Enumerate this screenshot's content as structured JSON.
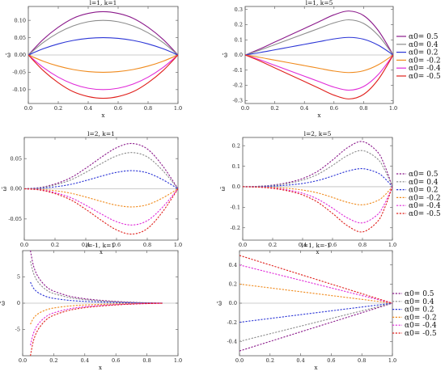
{
  "chart_data": [
    {
      "type": "line",
      "title": "l=1, k=1",
      "xlabel": "x",
      "ylabel": "ω̃",
      "xlim": [
        0,
        1
      ],
      "ylim": [
        -0.14,
        0.14
      ],
      "xticks": [
        "0.0",
        "0.2",
        "0.4",
        "0.6",
        "0.8",
        "1.0"
      ],
      "yticks": [
        "0.10",
        "0.05",
        "0.00",
        "-0.05",
        "-0.10"
      ],
      "zero_line": true,
      "x": [
        0,
        0.1,
        0.2,
        0.3,
        0.4,
        0.5,
        0.6,
        0.7,
        0.8,
        0.9,
        1
      ],
      "series": [
        {
          "name": "α0= 0.5",
          "color": "#8b1a8b",
          "values": [
            0,
            0.045,
            0.08,
            0.106,
            0.12,
            0.125,
            0.12,
            0.106,
            0.08,
            0.045,
            0
          ]
        },
        {
          "name": "α0= 0.4",
          "color": "#8c8c8c",
          "values": [
            0,
            0.036,
            0.064,
            0.084,
            0.096,
            0.1,
            0.096,
            0.084,
            0.064,
            0.036,
            0
          ]
        },
        {
          "name": "α0= 0.2",
          "color": "#2b35d6",
          "values": [
            0,
            0.018,
            0.032,
            0.042,
            0.048,
            0.05,
            0.048,
            0.042,
            0.032,
            0.018,
            0
          ]
        },
        {
          "name": "α0= -0.2",
          "color": "#f08a1c",
          "values": [
            0,
            -0.018,
            -0.032,
            -0.042,
            -0.048,
            -0.05,
            -0.048,
            -0.042,
            -0.032,
            -0.018,
            0
          ]
        },
        {
          "name": "α0= -0.4",
          "color": "#e02ad8",
          "values": [
            0,
            -0.036,
            -0.064,
            -0.084,
            -0.096,
            -0.1,
            -0.096,
            -0.084,
            -0.064,
            -0.036,
            0
          ]
        },
        {
          "name": "α0= -0.5",
          "color": "#e0201c",
          "values": [
            0,
            -0.045,
            -0.08,
            -0.106,
            -0.12,
            -0.125,
            -0.12,
            -0.106,
            -0.08,
            -0.045,
            0
          ]
        }
      ]
    },
    {
      "type": "line",
      "title": "l=1, k=5",
      "xlabel": "x",
      "ylabel": "ω̃",
      "xlim": [
        0,
        1
      ],
      "ylim": [
        -0.32,
        0.32
      ],
      "xticks": [
        "0.0",
        "0.2",
        "0.4",
        "0.6",
        "0.8",
        "1.0"
      ],
      "yticks": [
        "0.3",
        "0.2",
        "0.1",
        "0.0",
        "-0.1",
        "-0.2",
        "-0.3"
      ],
      "zero_line": true,
      "x": [
        0,
        0.1,
        0.2,
        0.3,
        0.4,
        0.5,
        0.6,
        0.7,
        0.8,
        0.9,
        1
      ],
      "series": [
        {
          "name": "α0= 0.5",
          "color": "#8b1a8b",
          "values": [
            0,
            0.04,
            0.085,
            0.13,
            0.175,
            0.22,
            0.265,
            0.29,
            0.26,
            0.16,
            0
          ]
        },
        {
          "name": "α0= 0.4",
          "color": "#8c8c8c",
          "values": [
            0,
            0.032,
            0.068,
            0.104,
            0.14,
            0.176,
            0.212,
            0.232,
            0.208,
            0.128,
            0
          ]
        },
        {
          "name": "α0= 0.2",
          "color": "#2b35d6",
          "values": [
            0,
            0.016,
            0.034,
            0.052,
            0.07,
            0.088,
            0.106,
            0.116,
            0.104,
            0.064,
            0
          ]
        },
        {
          "name": "α0= -0.2",
          "color": "#f08a1c",
          "values": [
            0,
            -0.016,
            -0.034,
            -0.052,
            -0.07,
            -0.088,
            -0.106,
            -0.116,
            -0.104,
            -0.064,
            0
          ]
        },
        {
          "name": "α0= -0.4",
          "color": "#e02ad8",
          "values": [
            0,
            -0.032,
            -0.068,
            -0.104,
            -0.14,
            -0.176,
            -0.212,
            -0.232,
            -0.208,
            -0.128,
            0
          ]
        },
        {
          "name": "α0= -0.5",
          "color": "#e0201c",
          "values": [
            0,
            -0.04,
            -0.085,
            -0.13,
            -0.175,
            -0.22,
            -0.265,
            -0.29,
            -0.26,
            -0.16,
            0
          ]
        }
      ]
    },
    {
      "type": "line",
      "title": "l=2, k=1",
      "xlabel": "x",
      "ylabel": "ω̃",
      "xlim": [
        0,
        1
      ],
      "ylim": [
        -0.085,
        0.085
      ],
      "xticks": [
        "0.0",
        "0.2",
        "0.4",
        "0.6",
        "0.8",
        "1.0"
      ],
      "yticks": [
        "0.05",
        "0.00",
        "-0.05"
      ],
      "zero_line": true,
      "dashed": true,
      "x": [
        0,
        0.1,
        0.2,
        0.3,
        0.4,
        0.5,
        0.6,
        0.7,
        0.8,
        0.9,
        1
      ],
      "series": [
        {
          "name": "α0= 0.5",
          "color": "#8b1a8b",
          "values": [
            0,
            0.002,
            0.008,
            0.018,
            0.034,
            0.052,
            0.068,
            0.075,
            0.066,
            0.038,
            0
          ]
        },
        {
          "name": "α0= 0.4",
          "color": "#8c8c8c",
          "values": [
            0,
            0.0016,
            0.0064,
            0.0144,
            0.0272,
            0.0416,
            0.0544,
            0.06,
            0.0528,
            0.0304,
            0
          ]
        },
        {
          "name": "α0= 0.2",
          "color": "#2b35d6",
          "values": [
            0,
            0.0008,
            0.0032,
            0.0072,
            0.0136,
            0.0208,
            0.0272,
            0.03,
            0.0264,
            0.0152,
            0
          ]
        },
        {
          "name": "α0= -0.2",
          "color": "#f08a1c",
          "values": [
            0,
            -0.0008,
            -0.0032,
            -0.0072,
            -0.0136,
            -0.0208,
            -0.0272,
            -0.03,
            -0.0264,
            -0.0152,
            0
          ]
        },
        {
          "name": "α0= -0.4",
          "color": "#e02ad8",
          "values": [
            0,
            -0.0016,
            -0.0064,
            -0.0144,
            -0.0272,
            -0.0416,
            -0.0544,
            -0.06,
            -0.0528,
            -0.0304,
            0
          ]
        },
        {
          "name": "α0= -0.5",
          "color": "#e0201c",
          "values": [
            0,
            -0.002,
            -0.008,
            -0.018,
            -0.034,
            -0.052,
            -0.068,
            -0.075,
            -0.066,
            -0.038,
            0
          ]
        }
      ]
    },
    {
      "type": "line",
      "title": "l=2, k=5",
      "xlabel": "x",
      "ylabel": "ω̃",
      "xlim": [
        0,
        1
      ],
      "ylim": [
        -0.26,
        0.24
      ],
      "xticks": [
        "0.0",
        "0.2",
        "0.4",
        "0.6",
        "0.8",
        "1.0"
      ],
      "yticks": [
        "0.2",
        "0.1",
        "0.0",
        "-0.1",
        "-0.2"
      ],
      "zero_line": true,
      "dashed": true,
      "x": [
        0,
        0.1,
        0.2,
        0.3,
        0.4,
        0.5,
        0.6,
        0.7,
        0.8,
        0.9,
        0.95,
        1
      ],
      "series": [
        {
          "name": "α0= 0.5",
          "color": "#8b1a8b",
          "values": [
            0,
            0.002,
            0.008,
            0.02,
            0.04,
            0.075,
            0.13,
            0.19,
            0.22,
            0.17,
            0.1,
            0
          ]
        },
        {
          "name": "α0= 0.4",
          "color": "#8c8c8c",
          "values": [
            0,
            0.0016,
            0.0064,
            0.016,
            0.032,
            0.06,
            0.104,
            0.152,
            0.176,
            0.136,
            0.08,
            0
          ]
        },
        {
          "name": "α0= 0.2",
          "color": "#2b35d6",
          "values": [
            0,
            0.0008,
            0.0032,
            0.008,
            0.016,
            0.03,
            0.052,
            0.076,
            0.088,
            0.068,
            0.04,
            0
          ]
        },
        {
          "name": "α0= -0.2",
          "color": "#f08a1c",
          "values": [
            0,
            -0.0008,
            -0.0032,
            -0.008,
            -0.016,
            -0.03,
            -0.052,
            -0.076,
            -0.088,
            -0.068,
            -0.04,
            0
          ]
        },
        {
          "name": "α0= -0.4",
          "color": "#e02ad8",
          "values": [
            0,
            -0.0016,
            -0.0064,
            -0.016,
            -0.032,
            -0.06,
            -0.104,
            -0.152,
            -0.176,
            -0.136,
            -0.08,
            0
          ]
        },
        {
          "name": "α0= -0.5",
          "color": "#e0201c",
          "values": [
            0,
            -0.002,
            -0.008,
            -0.02,
            -0.04,
            -0.075,
            -0.13,
            -0.19,
            -0.22,
            -0.17,
            -0.1,
            0
          ]
        }
      ]
    },
    {
      "type": "line",
      "title": "l=-1, k=1",
      "xlabel": "x",
      "ylabel": "ω̃",
      "xlim": [
        0,
        1
      ],
      "ylim": [
        -10,
        10
      ],
      "xticks": [
        "0.0",
        "0.2",
        "0.4",
        "0.6",
        "0.8",
        "1.0"
      ],
      "yticks": [
        "5",
        "0",
        "-5"
      ],
      "zero_line": true,
      "dashed": true,
      "x": [
        0.05,
        0.07,
        0.1,
        0.15,
        0.2,
        0.3,
        0.4,
        0.5,
        0.6,
        0.7,
        0.8,
        0.9
      ],
      "series": [
        {
          "name": "α0= 0.5",
          "color": "#8b1a8b",
          "values": [
            10,
            7.1,
            5,
            3.2,
            2.3,
            1.35,
            0.85,
            0.55,
            0.33,
            0.18,
            0.08,
            0.02
          ]
        },
        {
          "name": "α0= 0.4",
          "color": "#8c8c8c",
          "values": [
            8,
            5.7,
            4,
            2.56,
            1.84,
            1.08,
            0.68,
            0.44,
            0.26,
            0.14,
            0.06,
            0.016
          ]
        },
        {
          "name": "α0= 0.2",
          "color": "#2b35d6",
          "values": [
            4,
            2.85,
            2,
            1.28,
            0.92,
            0.54,
            0.34,
            0.22,
            0.13,
            0.07,
            0.03,
            0.008
          ]
        },
        {
          "name": "α0= -0.2",
          "color": "#f08a1c",
          "values": [
            -4,
            -2.85,
            -2,
            -1.28,
            -0.92,
            -0.54,
            -0.34,
            -0.22,
            -0.13,
            -0.07,
            -0.03,
            -0.008
          ]
        },
        {
          "name": "α0= -0.4",
          "color": "#e02ad8",
          "values": [
            -8,
            -5.7,
            -4,
            -2.56,
            -1.84,
            -1.08,
            -0.68,
            -0.44,
            -0.26,
            -0.14,
            -0.06,
            -0.016
          ]
        },
        {
          "name": "α0= -0.5",
          "color": "#e0201c",
          "values": [
            -10,
            -7.1,
            -5,
            -3.2,
            -2.3,
            -1.35,
            -0.85,
            -0.55,
            -0.33,
            -0.18,
            -0.08,
            -0.02
          ]
        }
      ]
    },
    {
      "type": "line",
      "title": "l=1, k=-1",
      "xlabel": "x",
      "ylabel": "ω̃",
      "xlim": [
        0,
        1
      ],
      "ylim": [
        -0.55,
        0.55
      ],
      "xticks": [
        "0.0",
        "0.2",
        "0.4",
        "0.6",
        "0.8",
        "1.0"
      ],
      "yticks": [
        "0.4",
        "0.2",
        "0.0",
        "-0.2",
        "-0.4"
      ],
      "zero_line": true,
      "dashed": true,
      "x": [
        0,
        1
      ],
      "series": [
        {
          "name": "α0= 0.5",
          "color": "#8b1a8b",
          "values": [
            -0.5,
            0
          ]
        },
        {
          "name": "α0= 0.4",
          "color": "#8c8c8c",
          "values": [
            -0.4,
            0
          ]
        },
        {
          "name": "α0= 0.2",
          "color": "#2b35d6",
          "values": [
            -0.2,
            0
          ]
        },
        {
          "name": "α0= -0.2",
          "color": "#f08a1c",
          "values": [
            0.2,
            0
          ]
        },
        {
          "name": "α0= -0.4",
          "color": "#e02ad8",
          "values": [
            0.4,
            0
          ]
        },
        {
          "name": "α0= -0.5",
          "color": "#e0201c",
          "values": [
            0.5,
            0
          ]
        }
      ]
    }
  ],
  "legend_alpha_prefix": "α",
  "legend_labels": [
    "0= 0.5",
    "0= 0.4",
    "0= 0.2",
    "0= -0.2",
    "0= -0.4",
    "0= -0.5"
  ],
  "colors": {
    "axis": "#555555",
    "zero_line": "#bbbbbb"
  }
}
